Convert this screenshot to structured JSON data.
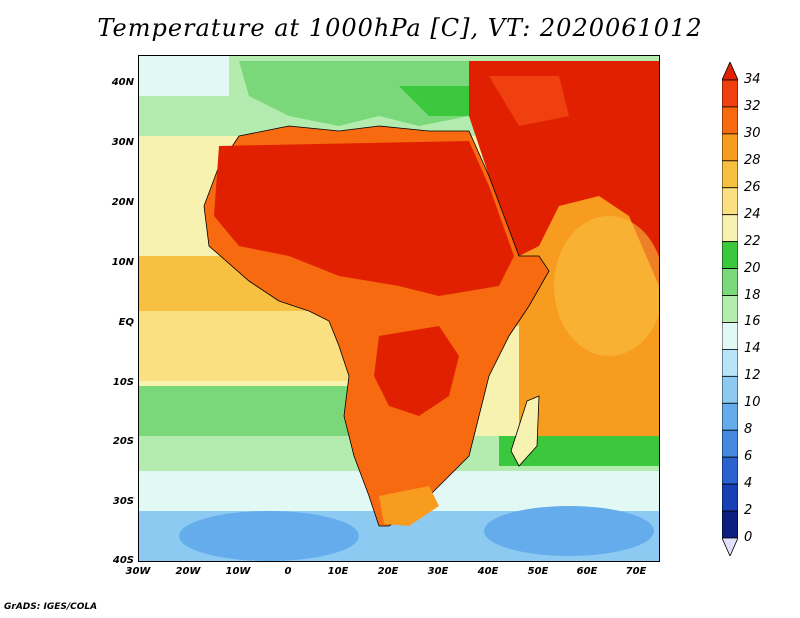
{
  "title": "Temperature at 1000hPa [C], VT: 2020061012",
  "credit": "GrADS: IGES/COLA",
  "latitude_labels": [
    "40N",
    "30N",
    "20N",
    "10N",
    "EQ",
    "10S",
    "20S",
    "30S",
    "40S"
  ],
  "longitude_labels": [
    "30W",
    "20W",
    "10W",
    "0",
    "10E",
    "20E",
    "30E",
    "40E",
    "50E",
    "60E",
    "70E"
  ],
  "colorbar": {
    "labels": [
      "34",
      "32",
      "30",
      "28",
      "26",
      "24",
      "22",
      "20",
      "18",
      "16",
      "14",
      "12",
      "10",
      "8",
      "6",
      "4",
      "2",
      "0"
    ],
    "colors": [
      "#e02000",
      "#f04010",
      "#f86a10",
      "#f89c20",
      "#f8c040",
      "#fae080",
      "#f8f2b0",
      "#3cc83c",
      "#7ad87a",
      "#b4ecb0",
      "#e2f8f4",
      "#b8e4fa",
      "#8ccaf2",
      "#64acec",
      "#4488e0",
      "#2a62d0",
      "#1840b4",
      "#0c1e80",
      "#e0e0f8"
    ]
  },
  "legend_colors": {
    "sea_cool": "#b4ecb0",
    "sea_mild": "#f8c040",
    "land_hot": "#e02000",
    "land_warm": "#f86a10",
    "coast_outline": "#000000"
  }
}
